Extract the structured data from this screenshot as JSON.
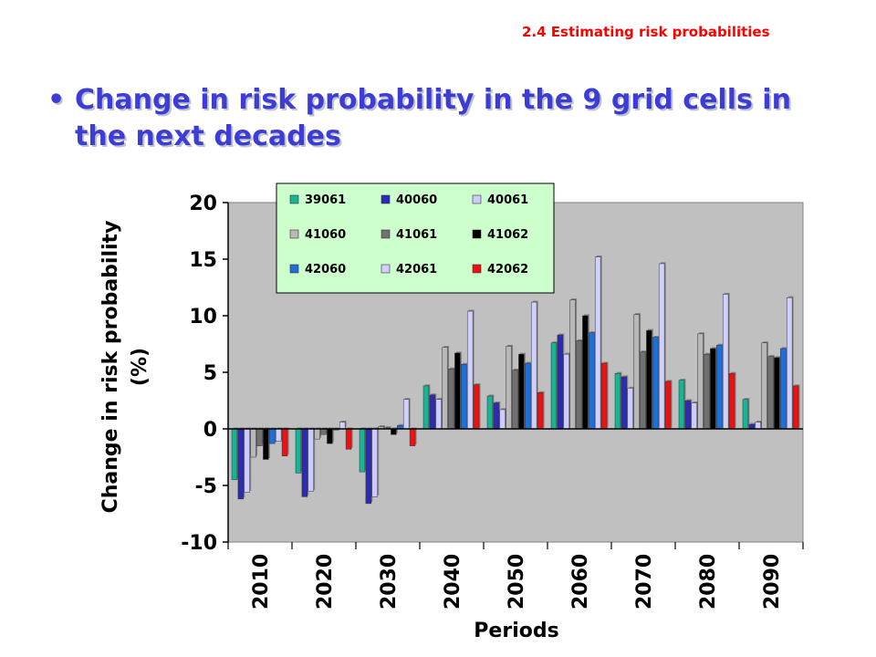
{
  "slide": {
    "header": "2.4 Estimating risk probabilities",
    "bullet": "•",
    "headline": "Change in risk probability in the 9 grid cells in the next decades"
  },
  "chart_data": {
    "type": "bar",
    "xlabel": "Periods",
    "ylabel": "Change in risk probability (%)",
    "ylim": [
      -10,
      20
    ],
    "yticks": [
      -10,
      -5,
      0,
      5,
      10,
      15,
      20
    ],
    "grid": false,
    "legend": "top-left, inside plot",
    "categories": [
      "2010",
      "2020",
      "2030",
      "2040",
      "2050",
      "2060",
      "2070",
      "2080",
      "2090"
    ],
    "series": [
      {
        "name": "39061",
        "color": "#1ab394",
        "values": [
          -4.5,
          -3.9,
          -3.8,
          3.8,
          2.9,
          7.6,
          4.9,
          4.3,
          2.6
        ]
      },
      {
        "name": "40060",
        "color": "#2b2bb8",
        "values": [
          -6.2,
          -6.0,
          -6.6,
          3.0,
          2.3,
          8.3,
          4.6,
          2.5,
          0.4
        ]
      },
      {
        "name": "40061",
        "color": "#ccccff",
        "values": [
          -5.6,
          -5.5,
          -6.0,
          2.6,
          1.7,
          6.6,
          3.6,
          2.3,
          0.6
        ]
      },
      {
        "name": "41060",
        "color": "#b8b8b8",
        "values": [
          -2.5,
          -0.9,
          0.2,
          7.2,
          7.3,
          11.4,
          10.1,
          8.4,
          7.6
        ]
      },
      {
        "name": "41061",
        "color": "#707070",
        "values": [
          -1.5,
          -0.5,
          0.1,
          5.3,
          5.2,
          7.8,
          6.8,
          6.6,
          6.4
        ]
      },
      {
        "name": "41062",
        "color": "#000000",
        "values": [
          -2.7,
          -1.3,
          -0.5,
          6.7,
          6.6,
          10.0,
          8.7,
          7.1,
          6.3
        ]
      },
      {
        "name": "42060",
        "color": "#1f6fd6",
        "values": [
          -1.3,
          -0.1,
          0.3,
          5.7,
          5.8,
          8.5,
          8.1,
          7.4,
          7.1
        ]
      },
      {
        "name": "42061",
        "color": "#d0d0ff",
        "values": [
          -1.1,
          0.6,
          2.6,
          10.4,
          11.2,
          15.2,
          14.6,
          11.9,
          11.6
        ]
      },
      {
        "name": "42062",
        "color": "#ee1111",
        "values": [
          -2.4,
          -1.8,
          -1.5,
          3.9,
          3.2,
          5.8,
          4.2,
          4.9,
          3.8
        ]
      }
    ],
    "plot_background": "#c0c0c0",
    "legend_background": "#ccffcc"
  }
}
